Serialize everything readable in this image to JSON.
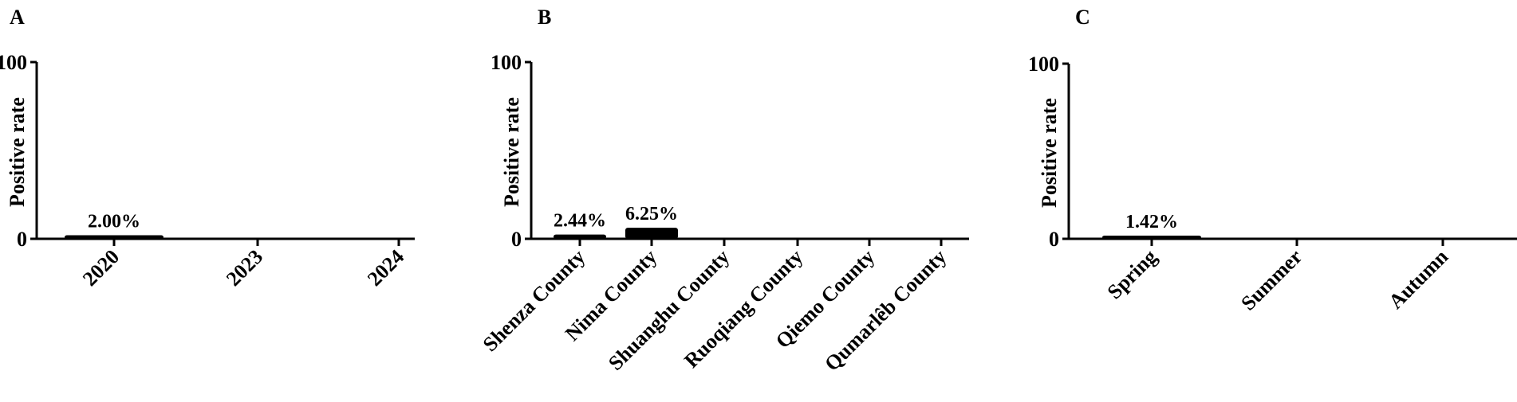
{
  "chart_data": [
    {
      "type": "bar",
      "panel_label": "A",
      "ylabel": "Positive rate",
      "ylim": [
        0,
        100
      ],
      "yticks": [
        "0",
        "100"
      ],
      "categories": [
        "2020",
        "2023",
        "2024"
      ],
      "values": [
        2.0,
        0,
        0
      ],
      "data_labels": [
        "2.00%",
        "",
        ""
      ],
      "bar_color": "#000000"
    },
    {
      "type": "bar",
      "panel_label": "B",
      "ylabel": "Positive rate",
      "ylim": [
        0,
        100
      ],
      "yticks": [
        "0",
        "100"
      ],
      "categories": [
        "Shenza County",
        "Nima County",
        "Shuanghu County",
        "Ruoqiang County",
        "Qiemo County",
        "Qumarlêb County"
      ],
      "values": [
        2.44,
        6.25,
        0,
        0,
        0,
        0
      ],
      "data_labels": [
        "2.44%",
        "6.25%",
        "",
        "",
        "",
        ""
      ],
      "bar_color": "#000000"
    },
    {
      "type": "bar",
      "panel_label": "C",
      "ylabel": "Positive rate",
      "ylim": [
        0,
        100
      ],
      "yticks": [
        "0",
        "100"
      ],
      "categories": [
        "Spring",
        "Summer",
        "Autumn"
      ],
      "values": [
        1.42,
        0,
        0
      ],
      "data_labels": [
        "1.42%",
        "",
        ""
      ],
      "bar_color": "#000000"
    }
  ]
}
